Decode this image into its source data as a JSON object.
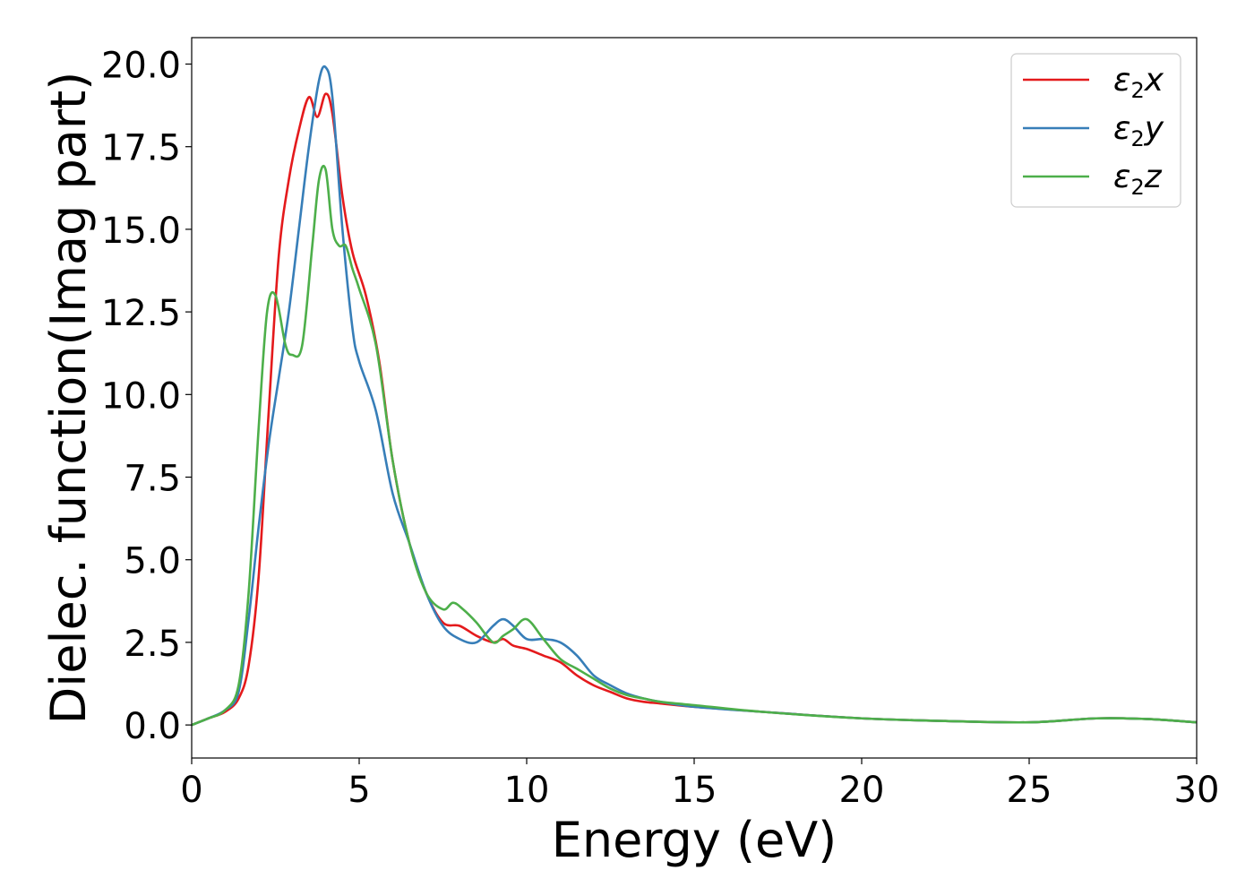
{
  "chart_data": {
    "type": "line",
    "xlabel": "Energy (eV)",
    "ylabel": "Dielec. function(Imag part)",
    "xlim": [
      0,
      30
    ],
    "ylim": [
      -1.0,
      20.8
    ],
    "xticks": [
      0,
      5,
      10,
      15,
      20,
      25,
      30
    ],
    "xtick_labels": [
      "0",
      "5",
      "10",
      "15",
      "20",
      "25",
      "30"
    ],
    "yticks": [
      0,
      2.5,
      5,
      7.5,
      10,
      12.5,
      15,
      17.5,
      20
    ],
    "ytick_labels": [
      "0.0",
      "2.5",
      "5.0",
      "7.5",
      "10.0",
      "12.5",
      "15.0",
      "17.5",
      "20.0"
    ],
    "grid": false,
    "legend_position": "top-right",
    "series": [
      {
        "name": "ε2x",
        "legend": {
          "main": "ε",
          "sub": "2",
          "suffix": "x"
        },
        "color": "#e41a1c",
        "x": [
          0,
          0.5,
          1.0,
          1.4,
          1.7,
          2.0,
          2.3,
          2.6,
          2.9,
          3.2,
          3.5,
          3.75,
          4.0,
          4.2,
          4.5,
          4.8,
          5.2,
          5.6,
          6.0,
          6.5,
          7.0,
          7.5,
          8.0,
          8.5,
          9.0,
          9.3,
          9.6,
          10.0,
          10.5,
          11.0,
          11.5,
          12.0,
          12.5,
          13.0,
          13.5,
          14.0,
          15.0,
          17.0,
          20.0,
          22.5,
          25.0,
          27.0,
          28.5,
          30.0
        ],
        "y": [
          0.0,
          0.2,
          0.4,
          0.8,
          1.8,
          4.5,
          9.5,
          14.2,
          16.5,
          18.0,
          19.0,
          18.4,
          19.1,
          18.5,
          16.0,
          14.3,
          13.0,
          11.0,
          8.0,
          5.5,
          4.0,
          3.1,
          3.0,
          2.7,
          2.5,
          2.6,
          2.4,
          2.3,
          2.1,
          1.9,
          1.5,
          1.2,
          1.0,
          0.8,
          0.7,
          0.65,
          0.55,
          0.4,
          0.2,
          0.12,
          0.08,
          0.2,
          0.18,
          0.08
        ]
      },
      {
        "name": "ε2y",
        "legend": {
          "main": "ε",
          "sub": "2",
          "suffix": "y"
        },
        "color": "#377eb8",
        "x": [
          0,
          0.5,
          1.0,
          1.4,
          1.7,
          2.0,
          2.3,
          2.6,
          2.9,
          3.2,
          3.5,
          3.8,
          4.0,
          4.2,
          4.5,
          4.8,
          5.0,
          5.5,
          6.0,
          6.5,
          7.0,
          7.5,
          8.0,
          8.5,
          9.0,
          9.3,
          9.6,
          10.0,
          10.5,
          11.0,
          11.5,
          12.0,
          12.5,
          13.0,
          13.5,
          14.0,
          15.0,
          17.0,
          20.0,
          22.5,
          25.0,
          27.0,
          28.5,
          30.0
        ],
        "y": [
          0.0,
          0.2,
          0.45,
          1.0,
          3.2,
          6.0,
          8.5,
          10.5,
          12.5,
          15.0,
          17.5,
          19.5,
          19.9,
          19.0,
          15.0,
          12.0,
          11.0,
          9.5,
          7.0,
          5.5,
          4.0,
          3.0,
          2.6,
          2.5,
          3.0,
          3.2,
          3.0,
          2.6,
          2.6,
          2.5,
          2.1,
          1.5,
          1.2,
          0.95,
          0.8,
          0.7,
          0.55,
          0.4,
          0.2,
          0.12,
          0.08,
          0.2,
          0.18,
          0.08
        ]
      },
      {
        "name": "ε2z",
        "legend": {
          "main": "ε",
          "sub": "2",
          "suffix": "z"
        },
        "color": "#4daf4a",
        "x": [
          0,
          0.5,
          1.0,
          1.4,
          1.7,
          2.0,
          2.25,
          2.5,
          2.8,
          3.0,
          3.3,
          3.6,
          3.8,
          4.0,
          4.2,
          4.4,
          4.6,
          4.8,
          5.0,
          5.5,
          6.0,
          6.5,
          7.0,
          7.5,
          7.8,
          8.1,
          8.5,
          9.0,
          9.3,
          9.6,
          10.0,
          10.5,
          11.0,
          11.5,
          12.0,
          12.5,
          13.0,
          13.5,
          14.0,
          15.0,
          17.0,
          20.0,
          22.5,
          25.0,
          27.0,
          28.5,
          30.0
        ],
        "y": [
          0.0,
          0.2,
          0.45,
          1.2,
          4.0,
          9.0,
          12.5,
          13.0,
          11.5,
          11.2,
          11.5,
          14.5,
          16.5,
          16.8,
          15.0,
          14.5,
          14.5,
          13.8,
          13.2,
          11.5,
          8.0,
          5.5,
          4.0,
          3.5,
          3.7,
          3.5,
          3.1,
          2.5,
          2.7,
          2.9,
          3.2,
          2.6,
          2.0,
          1.7,
          1.4,
          1.1,
          0.9,
          0.8,
          0.7,
          0.6,
          0.4,
          0.2,
          0.12,
          0.08,
          0.2,
          0.18,
          0.08
        ]
      }
    ]
  }
}
